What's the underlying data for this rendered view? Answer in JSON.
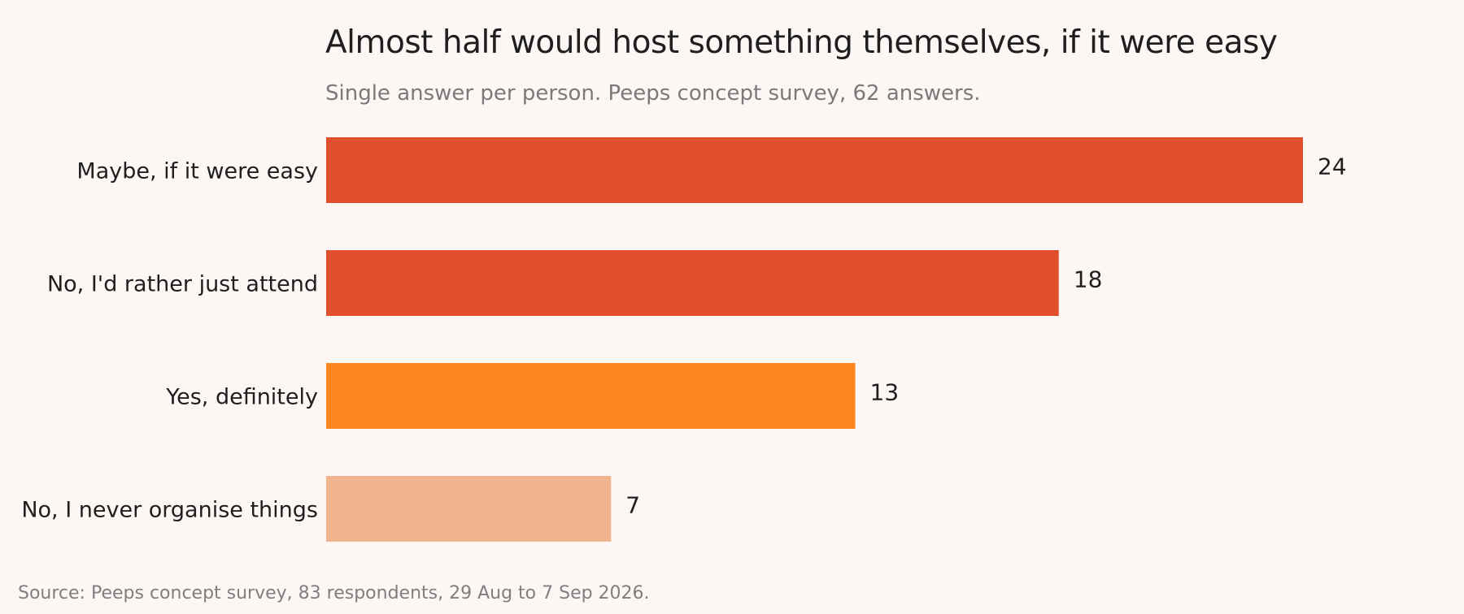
{
  "chart_data": {
    "type": "bar",
    "orientation": "horizontal",
    "title": "Almost half would host something themselves, if it were easy",
    "subtitle": "Single answer per person. Peeps concept survey, 62 answers.",
    "source": "Source: Peeps concept survey, 83 respondents, 29 Aug to 7 Sep 2026.",
    "categories": [
      "Maybe, if it were easy",
      "No, I'd rather just attend",
      "Yes, definitely",
      "No, I never organise things"
    ],
    "values": [
      24,
      18,
      13,
      7
    ],
    "colors": [
      "#e04e2c",
      "#e04e2c",
      "#ff8521",
      "#f0b48e"
    ],
    "xlim": [
      0,
      24
    ],
    "grid": false,
    "data_labels": true
  }
}
